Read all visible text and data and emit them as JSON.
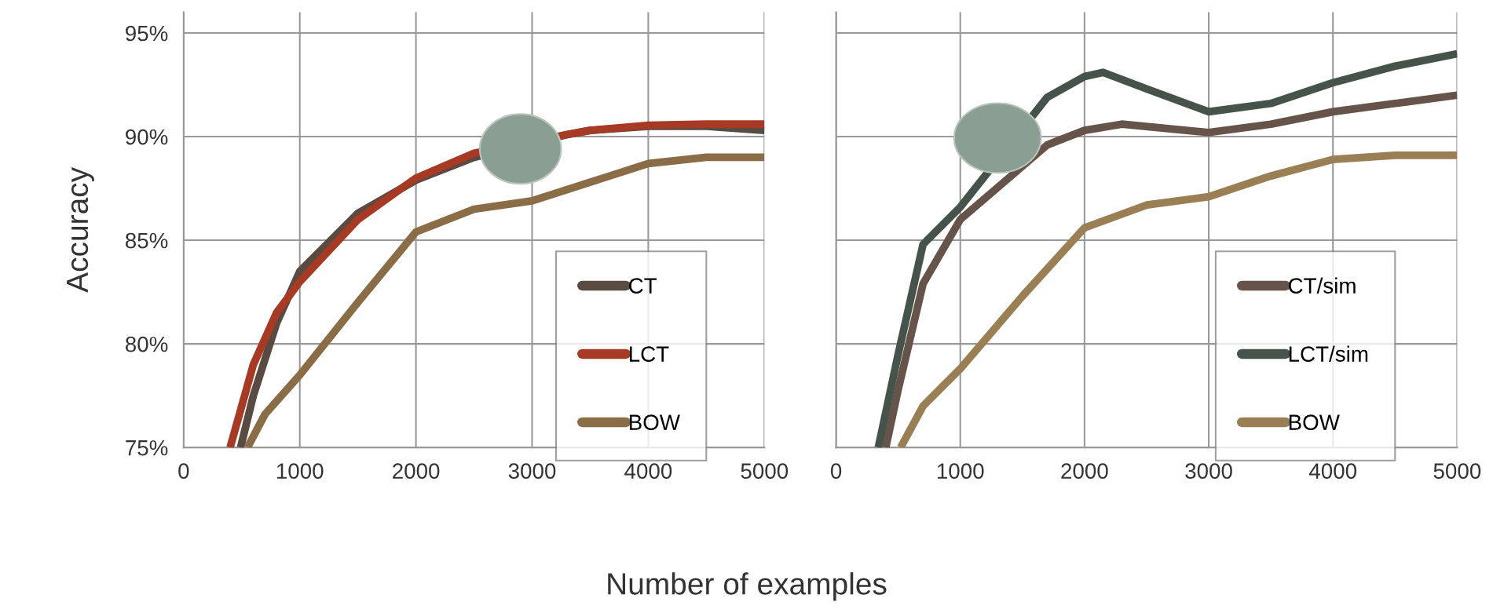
{
  "chart_data": [
    {
      "type": "line",
      "xlabel": "Number of examples",
      "ylabel": "Accuracy",
      "xlim": [
        0,
        5000
      ],
      "xticks": [
        0,
        1000,
        2000,
        3000,
        4000,
        5000
      ],
      "ylim": [
        75,
        96
      ],
      "yticks": [
        {
          "value": 75,
          "label": "75%"
        },
        {
          "value": 80,
          "label": "80%"
        },
        {
          "value": 85,
          "label": "85%"
        },
        {
          "value": 90,
          "label": "90%"
        },
        {
          "value": 95,
          "label": "95%"
        }
      ],
      "grid": true,
      "legend": "bottom right",
      "marker": "none",
      "line_style": "solid",
      "series": [
        {
          "name": "CT",
          "color": "#594a42",
          "x": [
            490,
            600,
            800,
            1000,
            1500,
            2000,
            2500,
            3300,
            3500,
            4000,
            4500,
            5000
          ],
          "values": [
            75,
            77.5,
            81,
            83.5,
            86.3,
            87.9,
            89.0,
            90.1,
            90.3,
            90.5,
            90.5,
            90.3
          ]
        },
        {
          "name": "LCT",
          "color": "#a63a24",
          "x": [
            400,
            500,
            600,
            800,
            1000,
            1500,
            2000,
            2500,
            3300,
            3500,
            4000,
            4500,
            5000
          ],
          "values": [
            75,
            77,
            79,
            81.5,
            83,
            86,
            88,
            89.2,
            90.1,
            90.3,
            90.55,
            90.6,
            90.6
          ]
        },
        {
          "name": "BOW",
          "color": "#8a6d47",
          "x": [
            550,
            700,
            1000,
            1500,
            2000,
            2500,
            3000,
            3500,
            4000,
            4500,
            5000
          ],
          "values": [
            75,
            76.6,
            78.5,
            82,
            85.4,
            86.5,
            86.9,
            87.8,
            88.7,
            89,
            89
          ]
        }
      ]
    },
    {
      "type": "line",
      "xlim": [
        0,
        5000
      ],
      "xticks": [
        0,
        1000,
        2000,
        3000,
        4000,
        5000
      ],
      "ylim": [
        75,
        96
      ],
      "yticks": [
        75,
        80,
        85,
        90,
        95
      ],
      "tick_labels": "x",
      "grid": true,
      "legend": "bottom right",
      "marker": "none",
      "line_style": "solid",
      "series": [
        {
          "name": "CT/sim",
          "color": "#66544a",
          "x": [
            400,
            500,
            700,
            1000,
            1700,
            2000,
            2300,
            3000,
            3500,
            4000,
            4500,
            5000
          ],
          "values": [
            75,
            77.8,
            82.9,
            86.0,
            89.6,
            90.3,
            90.6,
            90.2,
            90.6,
            91.2,
            91.6,
            92.0
          ]
        },
        {
          "name": "LCT/sim",
          "color": "#46534a",
          "x": [
            340,
            500,
            700,
            1000,
            1700,
            2000,
            2150,
            2500,
            3000,
            3500,
            4000,
            4500,
            5000
          ],
          "values": [
            75,
            79.5,
            84.8,
            86.6,
            91.9,
            92.9,
            93.1,
            92.3,
            91.2,
            91.6,
            92.6,
            93.4,
            94.0
          ]
        },
        {
          "name": "BOW",
          "color": "#9a7f55",
          "x": [
            520,
            700,
            1000,
            1500,
            2000,
            2500,
            3000,
            3500,
            4000,
            4500,
            5000
          ],
          "values": [
            75,
            77,
            78.8,
            82.3,
            85.6,
            86.7,
            87.1,
            88.1,
            88.9,
            89.1,
            89.1
          ]
        }
      ]
    }
  ]
}
